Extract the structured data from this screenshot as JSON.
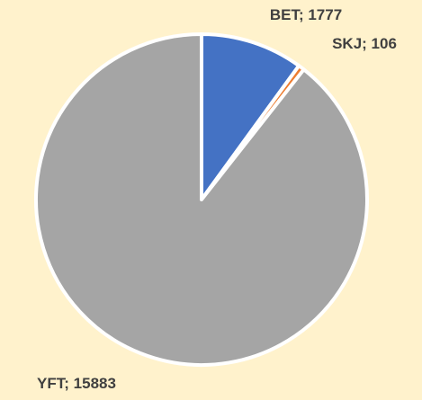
{
  "chart_data": {
    "type": "pie",
    "categories": [
      "BET",
      "SKJ",
      "YFT"
    ],
    "values": [
      1777,
      106,
      15883
    ],
    "colors": [
      "#4472c4",
      "#ed7d31",
      "#a5a5a5"
    ],
    "label_separator": "; "
  }
}
